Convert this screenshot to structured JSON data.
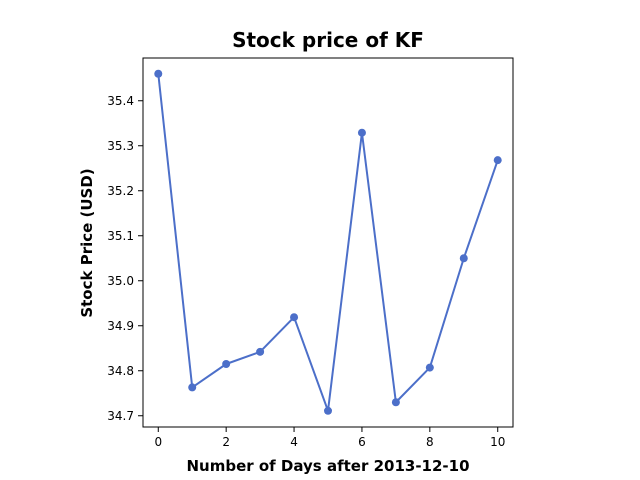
{
  "chart_data": {
    "type": "line",
    "title": "Stock price of KF",
    "xlabel": "Number of Days after 2013-12-10",
    "ylabel": "Stock Price (USD)",
    "xlim": [
      -0.45,
      10.45
    ],
    "ylim": [
      34.675,
      35.495
    ],
    "xticks": [
      0,
      2,
      4,
      6,
      8,
      10
    ],
    "yticks": [
      34.7,
      34.8,
      34.9,
      35.0,
      35.1,
      35.2,
      35.3,
      35.4
    ],
    "ytick_labels": [
      "34.7",
      "34.8",
      "34.9",
      "35.0",
      "35.1",
      "35.2",
      "35.3",
      "35.4"
    ],
    "grid": false,
    "color": "#4c6fc9",
    "x": [
      0,
      1,
      2,
      3,
      4,
      5,
      6,
      7,
      8,
      9,
      10
    ],
    "series": [
      {
        "values": [
          35.46,
          34.763,
          34.815,
          34.842,
          34.919,
          34.711,
          35.329,
          34.73,
          34.807,
          35.05,
          35.268
        ]
      }
    ]
  }
}
